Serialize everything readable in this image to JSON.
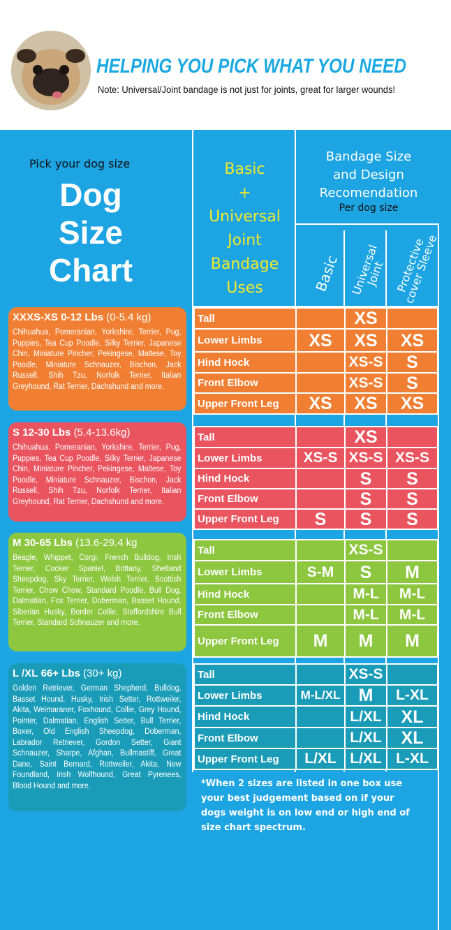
{
  "header": {
    "title": "HELPING YOU PICK WHAT YOU NEED",
    "note": "Note: Universal/Joint bandage is not just for joints, great for larger wounds!"
  },
  "left": {
    "pick": "Pick your dog size",
    "title_lines": [
      "Dog",
      "Size",
      "Chart"
    ]
  },
  "uses": {
    "lines": [
      "Basic",
      "+",
      "Universal",
      "Joint",
      "Bandage",
      "Uses"
    ]
  },
  "rec": {
    "lines": [
      "Bandage Size",
      "and Design",
      "Recomendation"
    ],
    "per": "Per dog size"
  },
  "columns": [
    "Basic",
    "Universal Joint",
    "Protective cover Sleeve"
  ],
  "colors": {
    "background": "#1ca4e3",
    "title": "#1ba9e3",
    "uses": "#f2ea2a",
    "xs": "#f07f33",
    "s": "#e9545f",
    "m": "#8dc63f",
    "l": "#1a9cb8"
  },
  "groups": [
    {
      "size": "XXXS-XS",
      "weight": "0-12 Lbs",
      "metric": "(0-5.4 kg)",
      "breeds": "Chihuahua, Pomeranian, Yorkshire, Terrier, Pug, Puppies, Tea Cup Poodle, Silky Terrier, Japanese Chin, Miniature Pincher, Pekingese, Maltese, Toy Poodle, Miniature Schnauzer, Bischon, Jack Russell, Shih Tzu, Norfolk Terrier, Italian Greyhound, Rat Terrier, Dachshund and more.",
      "rows": [
        [
          "Tall",
          "",
          "XS",
          ""
        ],
        [
          "Lower Limbs",
          "XS",
          "XS",
          "XS"
        ],
        [
          "Hind Hock",
          "",
          "XS-S",
          "S"
        ],
        [
          "Front Elbow",
          "",
          "XS-S",
          "S"
        ],
        [
          "Upper Front Leg",
          "XS",
          "XS",
          "XS"
        ]
      ]
    },
    {
      "size": "S",
      "weight": "12-30 Lbs",
      "metric": "(5.4-13.6kg)",
      "breeds": "Chihuahua, Pomeranian, Yorkshire, Terrier, Pug, Puppies, Tea Cup Poodle, Silky Terrier, Japanese Chin, Miniature Pincher, Pekingese, Maltese, Toy Poodle, Miniature Schnauzer, Bischon, Jack Russell, Shih Tzu, Norfolk Terrier, Italian Greyhound, Rat Terrier, Dachshund and more.",
      "rows": [
        [
          "Tall",
          "",
          "XS",
          ""
        ],
        [
          "Lower Limbs",
          "XS-S",
          "XS-S",
          "XS-S"
        ],
        [
          "Hind Hock",
          "",
          "S",
          "S"
        ],
        [
          "Front Elbow",
          "",
          "S",
          "S"
        ],
        [
          "Upper Front Leg",
          "S",
          "S",
          "S"
        ]
      ]
    },
    {
      "size": "M",
      "weight": "30-65 Lbs",
      "metric": "(13.6-29.4 kg",
      "breeds": "Beagle, Whippet, Corgi, French Bulldog, Irish Terrier, Cocker Spaniel, Brittany, Shetland Sheepdog, Sky Terrier, Welsh Terrier, Scottish Terrier, Chow Chow, Standard Poodle, Bull Dog, Dalmatian, Fox Terrier, Doberman, Basset Hound, Siberian Husky, Border Collie, Staffordshire Bull Terrier, Standard Schnauzer and more.",
      "rows": [
        [
          "Tall",
          "",
          "XS-S",
          ""
        ],
        [
          "Lower Limbs",
          "S-M",
          "S",
          "M"
        ],
        [
          "Hind Hock",
          "",
          "M-L",
          "M-L"
        ],
        [
          "Front Elbow",
          "",
          "M-L",
          "M-L"
        ],
        [
          "Upper Front Leg",
          "M",
          "M",
          "M"
        ]
      ]
    },
    {
      "size": "L /XL",
      "weight": "66+ Lbs",
      "metric": "(30+ kg)",
      "breeds": "Golden Retriever, German Shepherd, Bulldog, Basset Hound, Husky, Irish Setter, Rottweiler, Akita, Weimaraner, Foxhound, Collie, Grey Hound, Pointer, Dalmatian, English Setter, Bull Terrier, Boxer, Old English Sheepdog, Doberman, Labrador Retriever, Gordon Setter, Giant Schnauzer, Sharpe, Afghan, Bullmastiff, Great Dane, Saint Bernard, Rottweiler, Akita, New Foundland, Irish Wolfhound, Great Pyrenees, Blood Hound and more.",
      "rows": [
        [
          "Tall",
          "",
          "XS-S",
          ""
        ],
        [
          "Lower Limbs",
          "M-L/XL",
          "M",
          "L-XL"
        ],
        [
          "Hind Hock",
          "",
          "L/XL",
          "XL"
        ],
        [
          "Front Elbow",
          "",
          "L/XL",
          "XL"
        ],
        [
          "Upper Front Leg",
          "L/XL",
          "L/XL",
          "L-XL"
        ]
      ]
    }
  ],
  "footnote": "*When 2 sizes are listed in one box use your best judgement based on if your dogs weight is on low end or high end of size chart spectrum."
}
